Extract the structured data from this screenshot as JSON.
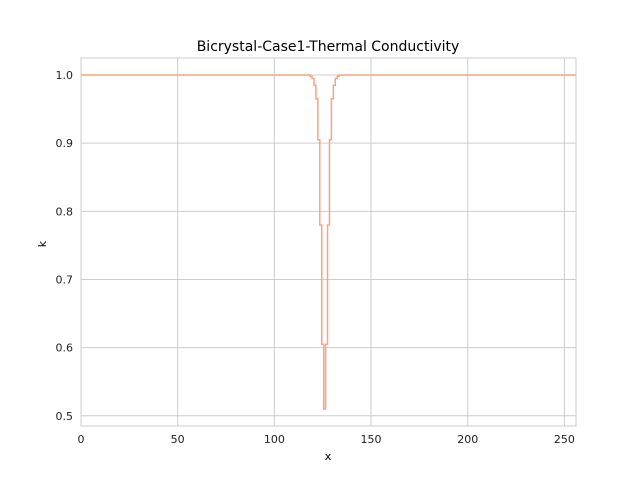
{
  "chart_data": {
    "type": "line",
    "title": "Bicrystal-Case1-Thermal Conductivity",
    "xlabel": "x",
    "ylabel": "k",
    "xlim": [
      0,
      256
    ],
    "ylim": [
      0.485,
      1.025
    ],
    "x_ticks": [
      0,
      50,
      100,
      150,
      200,
      250
    ],
    "y_ticks": [
      0.5,
      0.6,
      0.7,
      0.8,
      0.9,
      1.0
    ],
    "y_tick_labels": [
      "0.5",
      "0.6",
      "0.7",
      "0.8",
      "0.9",
      "1.0"
    ],
    "grid": true,
    "line_color": "#f4a582",
    "grid_color": "#cccccc",
    "series": [
      {
        "x": [
          0,
          118,
          119,
          120,
          121,
          122,
          123,
          124,
          125,
          126,
          127,
          128,
          129,
          130,
          131,
          132,
          133,
          134,
          135,
          136,
          137,
          138,
          256
        ],
        "values": [
          1.0,
          1.0,
          0.998,
          0.995,
          0.985,
          0.965,
          0.905,
          0.78,
          0.605,
          0.51,
          0.605,
          0.78,
          0.905,
          0.965,
          0.985,
          0.995,
          0.998,
          1.0,
          1.0,
          1.0,
          1.0,
          1.0,
          1.0
        ]
      }
    ]
  }
}
